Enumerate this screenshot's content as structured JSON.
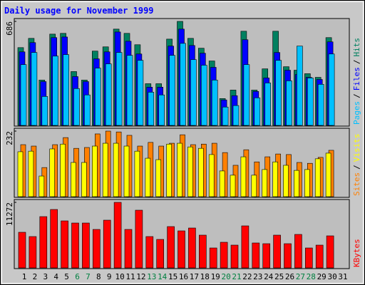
{
  "chart_data": {
    "type": "bar",
    "title": "Daily usage for November 1999",
    "categories": [
      "1",
      "2",
      "3",
      "4",
      "5",
      "6",
      "7",
      "8",
      "9",
      "10",
      "11",
      "12",
      "13",
      "14",
      "15",
      "16",
      "17",
      "18",
      "19",
      "20",
      "21",
      "22",
      "23",
      "24",
      "25",
      "26",
      "27",
      "28",
      "29",
      "30",
      "31"
    ],
    "category_colors": [
      "#000000",
      "#000000",
      "#000000",
      "#000000",
      "#000000",
      "#008040",
      "#008040",
      "#000000",
      "#000000",
      "#000000",
      "#000000",
      "#000000",
      "#008040",
      "#008040",
      "#000000",
      "#000000",
      "#000000",
      "#000000",
      "#000000",
      "#008040",
      "#008040",
      "#000000",
      "#000000",
      "#000000",
      "#000000",
      "#000000",
      "#008040",
      "#008040",
      "#000000",
      "#000000",
      "#000000"
    ],
    "legend_separator": "/",
    "panels": [
      {
        "ylim": [
          0,
          686
        ],
        "yticks": [
          686
        ],
        "series": [
          {
            "name": "Pages",
            "color": "#00C0FF",
            "values": [
              401,
              481,
              191,
              457,
              467,
              243,
              201,
              378,
              406,
              481,
              462,
              429,
              219,
              201,
              462,
              541,
              434,
              397,
              299,
              121,
              131,
              401,
              182,
              280,
              429,
              294,
              523,
              313,
              271,
              471,
              null
            ]
          },
          {
            "name": "Files",
            "color": "#0000FF",
            "values": [
              485,
              546,
              289,
              579,
              583,
              322,
              289,
              439,
              485,
              616,
              555,
              471,
              252,
              252,
              523,
              635,
              527,
              476,
              383,
              168,
              196,
              565,
              224,
              313,
              481,
              364,
              336,
              317,
              303,
              551,
              null
            ]
          },
          {
            "name": "Hits",
            "color": "#008060",
            "values": [
              513,
              574,
              299,
              602,
              607,
              355,
              299,
              490,
              518,
              635,
              607,
              532,
              275,
              275,
              569,
              686,
              574,
              509,
              425,
              177,
              233,
              621,
              233,
              373,
              621,
              387,
              364,
              341,
              317,
              579,
              null
            ]
          }
        ]
      },
      {
        "ylim": [
          0,
          232
        ],
        "yticks": [
          232
        ],
        "series": [
          {
            "name": "Sites",
            "color": "#FF8000",
            "values": [
              184,
              179,
              103,
              184,
              209,
              171,
              174,
              222,
              232,
              229,
              217,
              179,
              192,
              179,
              189,
              219,
              184,
              186,
              189,
              156,
              111,
              166,
              123,
              141,
              151,
              149,
              121,
              118,
              139,
              164,
              null
            ]
          },
          {
            "name": "Visits",
            "color": "#FFFF00",
            "values": [
              159,
              161,
              73,
              169,
              186,
              121,
              121,
              179,
              189,
              189,
              179,
              161,
              136,
              131,
              186,
              189,
              176,
              171,
              149,
              91,
              76,
              141,
              76,
              96,
              123,
              111,
              93,
              96,
              134,
              154,
              null
            ]
          }
        ]
      },
      {
        "ylim": [
          0,
          11272
        ],
        "yticks": [
          11272
        ],
        "series": [
          {
            "name": "KBytes",
            "color": "#FF0000",
            "values": [
              6125,
              5390,
              8820,
              10045,
              8085,
              7718,
              7718,
              6615,
              8208,
              11272,
              6615,
              9923,
              5390,
              4900,
              7105,
              6370,
              6860,
              5635,
              3430,
              4410,
              3920,
              7228,
              4288,
              4165,
              5635,
              4165,
              5758,
              3430,
              3920,
              5513,
              null
            ]
          }
        ]
      }
    ]
  }
}
